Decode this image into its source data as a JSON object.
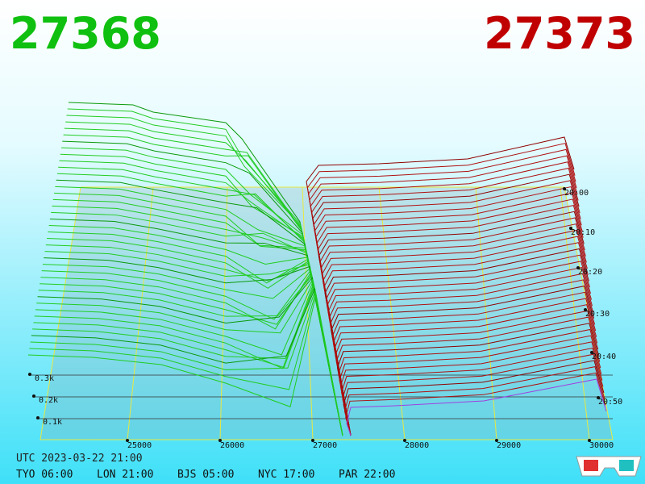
{
  "header": {
    "bid": "27368",
    "ask": "27373"
  },
  "price_axis": [
    "25000",
    "26000",
    "27000",
    "28000",
    "29000",
    "30000"
  ],
  "volume_axis": [
    "0.3k",
    "0.2k",
    "0.1k"
  ],
  "time_axis": [
    "20:00",
    "20:10",
    "20:20",
    "20:30",
    "20:40",
    "20:50"
  ],
  "footer": {
    "utc": "UTC 2023-03-22 21:00",
    "zones": [
      "TYO 06:00",
      "LON 21:00",
      "BJS 05:00",
      "NYC 17:00",
      "PAR 22:00"
    ]
  }
}
